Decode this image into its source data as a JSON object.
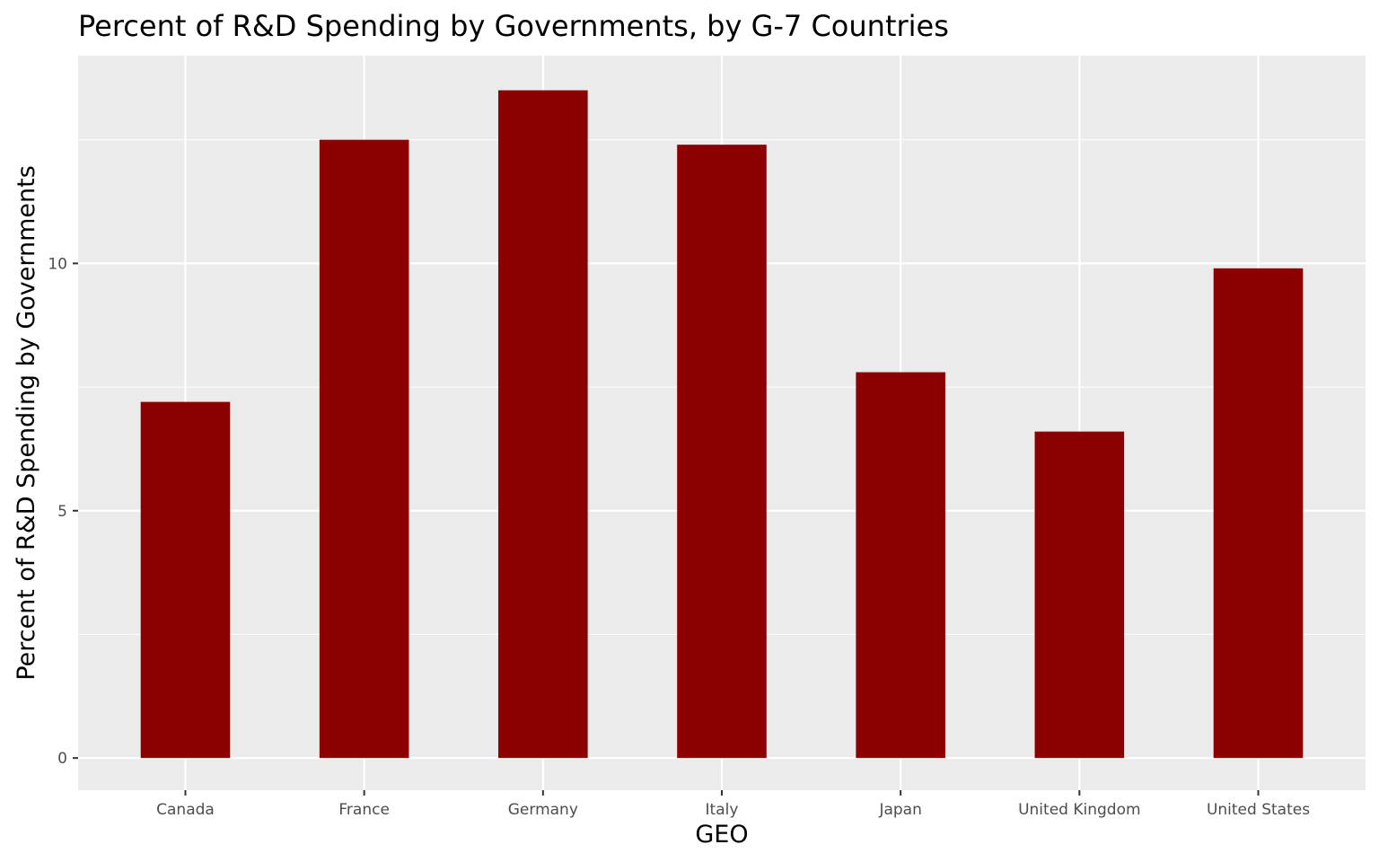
{
  "chart_data": {
    "type": "bar",
    "title": "Percent of R&D Spending by Governments, by G-7 Countries",
    "xlabel": "GEO",
    "ylabel": "Percent of R&D Spending by Governments",
    "categories": [
      "Canada",
      "France",
      "Germany",
      "Italy",
      "Japan",
      "United Kingdom",
      "United States"
    ],
    "values": [
      7.2,
      12.5,
      13.5,
      12.4,
      7.8,
      6.6,
      9.9
    ],
    "ylim": [
      -0.65,
      14.2
    ],
    "y_ticks": [
      0,
      5,
      10
    ],
    "y_tick_labels": [
      "0",
      "5",
      "10"
    ],
    "y_minor_ticks": [
      2.5,
      7.5,
      12.5
    ],
    "grid": true,
    "legend": "none",
    "colors": {
      "bar": "#8B0000",
      "panel": "#EBEBEB",
      "grid": "#FFFFFF"
    }
  }
}
